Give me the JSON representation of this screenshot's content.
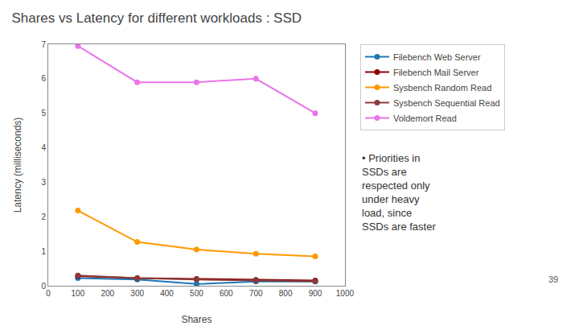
{
  "chart_data": {
    "type": "line",
    "title": "Shares vs Latency for different workloads : SSD",
    "xlabel": "Shares",
    "ylabel": "Latency (milliseconds)",
    "x": [
      100,
      300,
      500,
      700,
      900
    ],
    "series": [
      {
        "name": "Filebench Web Server",
        "color": "#1f77b4",
        "values": [
          0.22,
          0.18,
          0.05,
          0.12,
          0.12
        ]
      },
      {
        "name": "Filebench Mail Server",
        "color": "#8b0000",
        "values": [
          0.28,
          0.22,
          0.2,
          0.17,
          0.15
        ]
      },
      {
        "name": "Sysbench Random Read",
        "color": "#ff9900",
        "values": [
          2.18,
          1.27,
          1.05,
          0.93,
          0.85
        ]
      },
      {
        "name": "Sysbench Sequential Read",
        "color": "#8b3a3a",
        "values": [
          0.3,
          0.22,
          0.18,
          0.15,
          0.13
        ]
      },
      {
        "name": "Voldemort Read",
        "color": "#e975e9",
        "values": [
          6.95,
          5.9,
          5.9,
          6.0,
          5.0
        ]
      }
    ],
    "xlim": [
      0,
      1000
    ],
    "ylim": [
      0,
      7
    ],
    "xticks": [
      0,
      100,
      200,
      300,
      400,
      500,
      600,
      700,
      800,
      900,
      1000
    ],
    "yticks": [
      0,
      1,
      2,
      3,
      4,
      5,
      6,
      7
    ],
    "grid": false,
    "legend": "upper right",
    "marker": "circle",
    "annotations": [
      "• Priorities in\nSSDs are\nrespected only\nunder heavy\nload, since\nSSDs are faster",
      "39"
    ]
  }
}
